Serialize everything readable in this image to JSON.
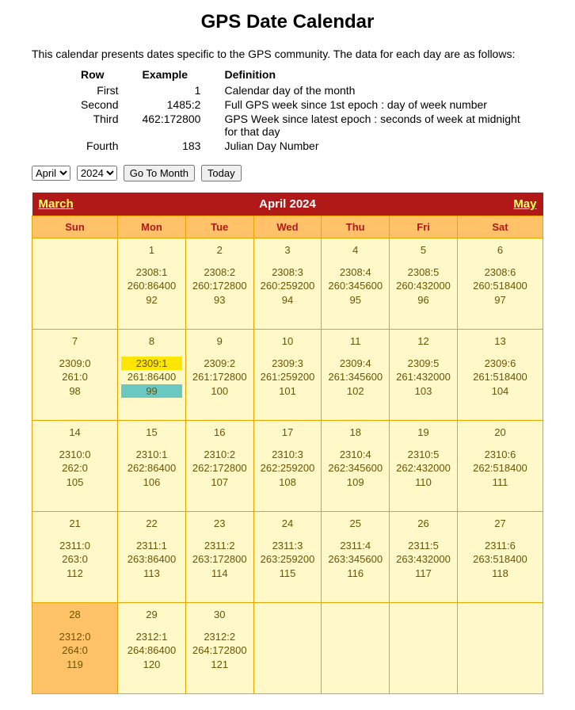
{
  "page": {
    "title": "GPS Date Calendar",
    "intro": "This calendar presents dates specific to the GPS community. The data for each day are as follows:"
  },
  "legend": {
    "headers": {
      "row": "Row",
      "example": "Example",
      "definition": "Definition"
    },
    "rows": [
      {
        "row": "First",
        "example": "1",
        "definition": "Calendar day of the month"
      },
      {
        "row": "Second",
        "example": "1485:2",
        "definition": "Full GPS week since 1st epoch : day of week number"
      },
      {
        "row": "Third",
        "example": "462:172800",
        "definition": "GPS Week since latest epoch : seconds of week at midnight for that day"
      },
      {
        "row": "Fourth",
        "example": "183",
        "definition": "Julian Day Number"
      }
    ]
  },
  "controls": {
    "month_value": "April",
    "year_value": "2024",
    "go_button": "Go To Month",
    "today_button": "Today"
  },
  "calendar": {
    "prev_label": "March",
    "title": "April 2024",
    "next_label": "May",
    "dow": [
      "Sun",
      "Mon",
      "Tue",
      "Wed",
      "Thu",
      "Fri",
      "Sat"
    ],
    "style": {
      "border_color": "#e9a400",
      "header_bg": "#b01918",
      "header_text": "#ffffff",
      "navlink_color": "#ffff66",
      "dow_bg": "#ffc268",
      "dow_text": "#b01918",
      "cell_bg": "#fff9c9",
      "today_bg": "#ffc268",
      "cell_text": "#6a5500",
      "highlight_yellow": "#ffe600",
      "highlight_teal": "#6ac7c2"
    },
    "weeks": [
      [
        {
          "empty": true
        },
        {
          "day": "1",
          "full": "2308:1",
          "epoch": "260:86400",
          "julian": "92"
        },
        {
          "day": "2",
          "full": "2308:2",
          "epoch": "260:172800",
          "julian": "93"
        },
        {
          "day": "3",
          "full": "2308:3",
          "epoch": "260:259200",
          "julian": "94"
        },
        {
          "day": "4",
          "full": "2308:4",
          "epoch": "260:345600",
          "julian": "95"
        },
        {
          "day": "5",
          "full": "2308:5",
          "epoch": "260:432000",
          "julian": "96"
        },
        {
          "day": "6",
          "full": "2308:6",
          "epoch": "260:518400",
          "julian": "97"
        }
      ],
      [
        {
          "day": "7",
          "full": "2309:0",
          "epoch": "261:0",
          "julian": "98"
        },
        {
          "day": "8",
          "full": "2309:1",
          "epoch": "261:86400",
          "julian": "99",
          "highlight_full": true,
          "highlight_julian": true
        },
        {
          "day": "9",
          "full": "2309:2",
          "epoch": "261:172800",
          "julian": "100"
        },
        {
          "day": "10",
          "full": "2309:3",
          "epoch": "261:259200",
          "julian": "101"
        },
        {
          "day": "11",
          "full": "2309:4",
          "epoch": "261:345600",
          "julian": "102"
        },
        {
          "day": "12",
          "full": "2309:5",
          "epoch": "261:432000",
          "julian": "103"
        },
        {
          "day": "13",
          "full": "2309:6",
          "epoch": "261:518400",
          "julian": "104"
        }
      ],
      [
        {
          "day": "14",
          "full": "2310:0",
          "epoch": "262:0",
          "julian": "105"
        },
        {
          "day": "15",
          "full": "2310:1",
          "epoch": "262:86400",
          "julian": "106"
        },
        {
          "day": "16",
          "full": "2310:2",
          "epoch": "262:172800",
          "julian": "107"
        },
        {
          "day": "17",
          "full": "2310:3",
          "epoch": "262:259200",
          "julian": "108"
        },
        {
          "day": "18",
          "full": "2310:4",
          "epoch": "262:345600",
          "julian": "109"
        },
        {
          "day": "19",
          "full": "2310:5",
          "epoch": "262:432000",
          "julian": "110"
        },
        {
          "day": "20",
          "full": "2310:6",
          "epoch": "262:518400",
          "julian": "111"
        }
      ],
      [
        {
          "day": "21",
          "full": "2311:0",
          "epoch": "263:0",
          "julian": "112"
        },
        {
          "day": "22",
          "full": "2311:1",
          "epoch": "263:86400",
          "julian": "113"
        },
        {
          "day": "23",
          "full": "2311:2",
          "epoch": "263:172800",
          "julian": "114"
        },
        {
          "day": "24",
          "full": "2311:3",
          "epoch": "263:259200",
          "julian": "115"
        },
        {
          "day": "25",
          "full": "2311:4",
          "epoch": "263:345600",
          "julian": "116"
        },
        {
          "day": "26",
          "full": "2311:5",
          "epoch": "263:432000",
          "julian": "117"
        },
        {
          "day": "27",
          "full": "2311:6",
          "epoch": "263:518400",
          "julian": "118"
        }
      ],
      [
        {
          "day": "28",
          "full": "2312:0",
          "epoch": "264:0",
          "julian": "119",
          "today": true
        },
        {
          "day": "29",
          "full": "2312:1",
          "epoch": "264:86400",
          "julian": "120"
        },
        {
          "day": "30",
          "full": "2312:2",
          "epoch": "264:172800",
          "julian": "121"
        },
        {
          "empty": true
        },
        {
          "empty": true
        },
        {
          "empty": true
        },
        {
          "empty": true
        }
      ]
    ]
  }
}
